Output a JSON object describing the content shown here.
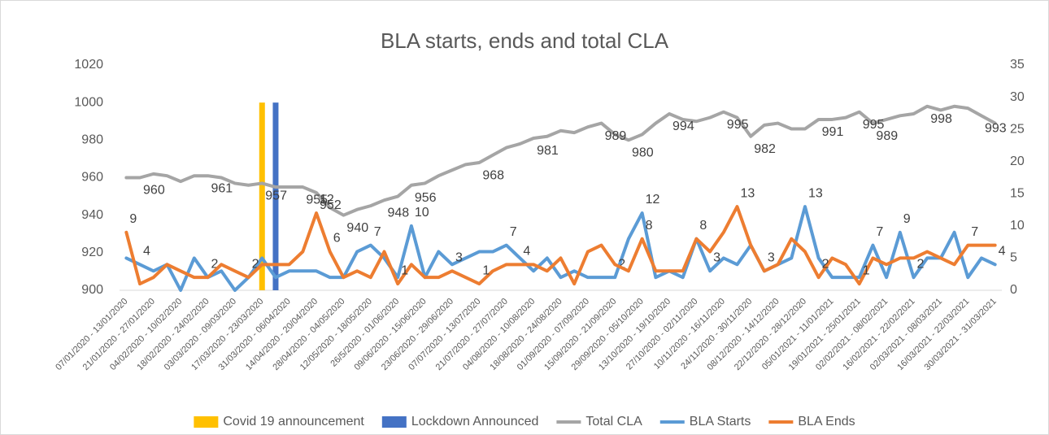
{
  "chart_data": {
    "type": "line",
    "title": "BLA starts, ends and total CLA",
    "categories": [
      "07/01/2020 - 13/01/2020",
      null,
      "21/01/2020 - 27/01/2020",
      null,
      "04/02/2020 - 10/02/2020",
      null,
      "18/02/2020 - 24/02/2020",
      null,
      "03/03/2020 - 09/03/2020",
      null,
      "17/03/2020 - 23/03/2020",
      null,
      "31/03/2020 - 06/04/2020",
      null,
      "14/04/2020 - 20/04/2020",
      null,
      "28/04/2020 - 04/05/2020",
      null,
      "12/05/2020 - 18/05/2020",
      null,
      "26/5/2020 - 01/06/2020",
      null,
      "09/06/2020 - 15/06/2020",
      null,
      "23/06/2020 - 29/06/2020",
      null,
      "07/07/2020 - 13/07/2020",
      null,
      "21/07/2020 - 27/07/2020",
      null,
      "04/08/2020 - 10/08/2020",
      null,
      "18/08/2020 - 24/08/2020",
      null,
      "01/09/2020 - 07/09/2020",
      null,
      "15/09/2020 - 21/09/2020",
      null,
      "29/09/2020 - 05/10/2020",
      null,
      "13/10/2020 - 19/10/2020",
      null,
      "27/10/2020 - 02/11/2020",
      null,
      "10/11/2020 - 16/11/2020",
      null,
      "24/11/2020 - 30/11/2020",
      null,
      "08/12/2020 - 14/12/2020",
      null,
      "22/12/2020 - 28/12/2020",
      null,
      "05/01/2021 - 11/01/2021",
      null,
      "19/01/2021 - 25/01/2021",
      null,
      "02/02/2021 - 08/02/2021",
      null,
      "16/02/2021 - 22/02/2021",
      null,
      "02/03/2021 - 08/03/2021",
      null,
      "16/03/2021 - 22/03/2021",
      null,
      "30/03/2021 - 31/03/2021"
    ],
    "ylim": [
      900,
      1020
    ],
    "yticks": [
      900,
      920,
      940,
      960,
      980,
      1000,
      1020
    ],
    "y2lim": [
      0,
      35
    ],
    "y2ticks": [
      0,
      5,
      10,
      15,
      20,
      25,
      30,
      35
    ],
    "grid": false,
    "legend": "bottom",
    "series": [
      {
        "name": "Covid 19 announcement",
        "type": "bar",
        "color": "#ffc000",
        "values": [
          null,
          null,
          null,
          null,
          null,
          null,
          null,
          null,
          null,
          null,
          1000,
          null,
          null,
          null,
          null,
          null,
          null,
          null,
          null,
          null,
          null,
          null,
          null,
          null,
          null,
          null,
          null,
          null,
          null,
          null,
          null,
          null,
          null,
          null,
          null,
          null,
          null,
          null,
          null,
          null,
          null,
          null,
          null,
          null,
          null,
          null,
          null,
          null,
          null,
          null,
          null,
          null,
          null,
          null,
          null,
          null,
          null,
          null,
          null,
          null,
          null,
          null,
          null,
          null,
          null
        ]
      },
      {
        "name": "Lockdown Announced",
        "type": "bar",
        "color": "#4472c4",
        "values": [
          null,
          null,
          null,
          null,
          null,
          null,
          null,
          null,
          null,
          null,
          null,
          1000,
          null,
          null,
          null,
          null,
          null,
          null,
          null,
          null,
          null,
          null,
          null,
          null,
          null,
          null,
          null,
          null,
          null,
          null,
          null,
          null,
          null,
          null,
          null,
          null,
          null,
          null,
          null,
          null,
          null,
          null,
          null,
          null,
          null,
          null,
          null,
          null,
          null,
          null,
          null,
          null,
          null,
          null,
          null,
          null,
          null,
          null,
          null,
          null,
          null,
          null,
          null,
          null,
          null
        ]
      },
      {
        "name": "Total CLA",
        "type": "line",
        "color": "#a5a5a5",
        "values": [
          960,
          960,
          962,
          961,
          958,
          961,
          961,
          960,
          957,
          956,
          957,
          955,
          955,
          955,
          952,
          944,
          940,
          943,
          945,
          948,
          950,
          956,
          957,
          961,
          964,
          967,
          968,
          972,
          976,
          978,
          981,
          982,
          985,
          984,
          987,
          989,
          983,
          980,
          983,
          989,
          994,
          991,
          990,
          992,
          995,
          992,
          982,
          988,
          989,
          986,
          986,
          991,
          991,
          992,
          995,
          989,
          991,
          993,
          994,
          998,
          996,
          998,
          997,
          993,
          989
        ],
        "value_labels": [
          null,
          "960",
          null,
          null,
          null,
          null,
          "961",
          null,
          null,
          null,
          "957",
          null,
          null,
          "955",
          "952",
          null,
          "940",
          null,
          null,
          "948",
          null,
          "956",
          null,
          null,
          null,
          null,
          "968",
          null,
          null,
          null,
          "981",
          null,
          null,
          null,
          null,
          "989",
          null,
          "980",
          null,
          null,
          "994",
          null,
          null,
          null,
          "995",
          null,
          "982",
          null,
          null,
          null,
          null,
          "991",
          null,
          null,
          "995",
          "989",
          null,
          null,
          null,
          "998",
          null,
          null,
          null,
          "993",
          null
        ]
      },
      {
        "name": "BLA Starts",
        "type": "line",
        "axis": "y2",
        "color": "#5b9bd5",
        "values": [
          5,
          4,
          3,
          4,
          0,
          5,
          2,
          3,
          0,
          2,
          5,
          2,
          3,
          3,
          3,
          2,
          2,
          6,
          7,
          5,
          2,
          10,
          2,
          6,
          4,
          5,
          6,
          6,
          7,
          5,
          3,
          5,
          2,
          3,
          2,
          2,
          2,
          8,
          12,
          2,
          3,
          2,
          8,
          3,
          5,
          4,
          7,
          3,
          4,
          5,
          13,
          5,
          2,
          2,
          2,
          7,
          2,
          9,
          2,
          5,
          5,
          9,
          2,
          5,
          4
        ],
        "value_labels": [
          null,
          "4",
          null,
          null,
          null,
          null,
          "2",
          null,
          null,
          "2",
          null,
          null,
          null,
          null,
          null,
          null,
          null,
          null,
          "7",
          null,
          null,
          "10",
          null,
          null,
          null,
          null,
          null,
          null,
          "7",
          null,
          null,
          null,
          null,
          null,
          null,
          null,
          "2",
          null,
          "12",
          null,
          null,
          null,
          null,
          "3",
          null,
          null,
          null,
          "3",
          null,
          null,
          "13",
          null,
          null,
          null,
          null,
          "7",
          null,
          "9",
          "2",
          null,
          null,
          null,
          null,
          null,
          "4"
        ]
      },
      {
        "name": "BLA Ends",
        "type": "line",
        "axis": "y2",
        "color": "#ed7d31",
        "values": [
          9,
          1,
          2,
          4,
          3,
          2,
          2,
          4,
          3,
          2,
          4,
          4,
          4,
          6,
          12,
          6,
          2,
          3,
          2,
          6,
          1,
          4,
          2,
          2,
          3,
          2,
          1,
          3,
          4,
          4,
          4,
          3,
          5,
          1,
          6,
          7,
          4,
          3,
          8,
          3,
          3,
          3,
          8,
          6,
          9,
          13,
          7,
          3,
          4,
          8,
          6,
          2,
          5,
          4,
          1,
          5,
          4,
          5,
          5,
          6,
          5,
          4,
          7,
          7,
          7
        ],
        "value_labels": [
          "9",
          null,
          null,
          null,
          null,
          null,
          null,
          null,
          null,
          null,
          null,
          null,
          null,
          null,
          "12",
          "6",
          null,
          null,
          null,
          null,
          "1",
          null,
          null,
          null,
          "3",
          null,
          "1",
          null,
          null,
          "4",
          null,
          null,
          null,
          null,
          null,
          null,
          null,
          null,
          "8",
          null,
          null,
          null,
          "8",
          null,
          null,
          "13",
          null,
          null,
          null,
          null,
          null,
          "2",
          null,
          null,
          "1",
          null,
          null,
          null,
          null,
          null,
          null,
          null,
          "7",
          null,
          null
        ]
      }
    ]
  }
}
